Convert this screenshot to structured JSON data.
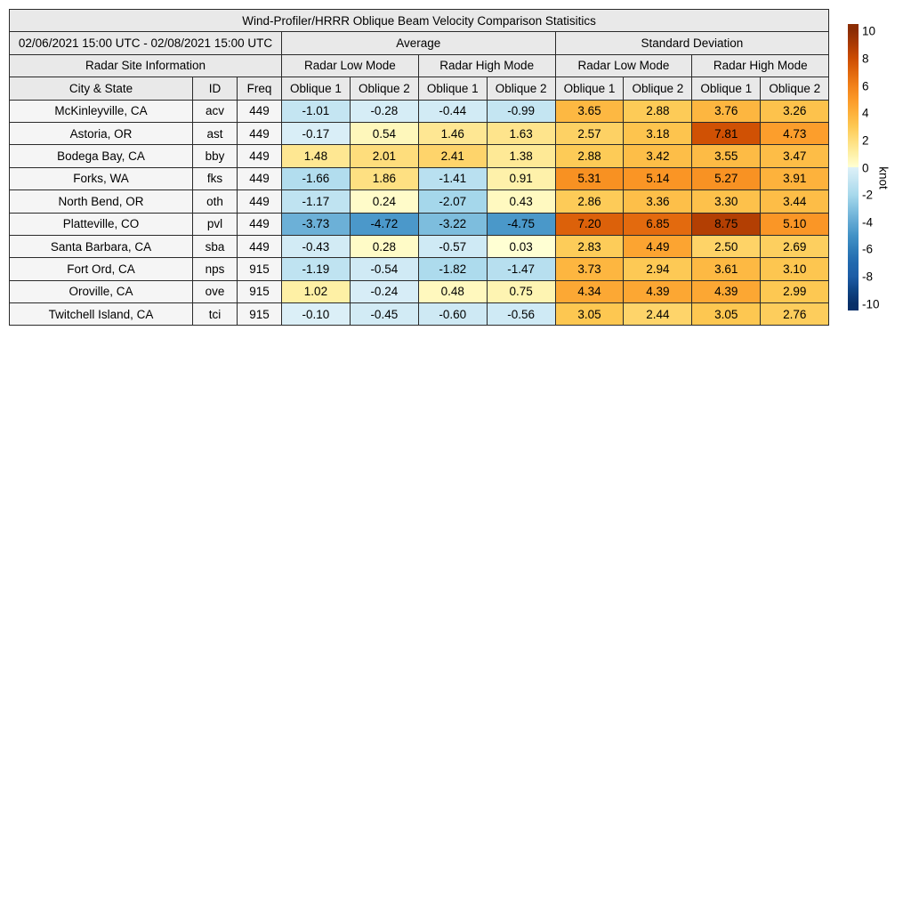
{
  "title": "Wind-Profiler/HRRR Oblique Beam Velocity Comparison Statisitics",
  "period": "02/06/2021 15:00 UTC - 02/08/2021 15:00 UTC",
  "header": {
    "group_average": "Average",
    "group_std": "Standard Deviation",
    "site_info": "Radar Site Information",
    "low_mode": "Radar Low Mode",
    "high_mode": "Radar High Mode",
    "col_city": "City & State",
    "col_id": "ID",
    "col_freq": "Freq",
    "oblique1": "Oblique 1",
    "oblique2": "Oblique 2"
  },
  "colorbar": {
    "label": "knot",
    "ticks": [
      10,
      8,
      6,
      4,
      2,
      0,
      -2,
      -4,
      -6,
      -8,
      -10
    ],
    "min": -10,
    "max": 10
  },
  "colors": {
    "header_bg": "#e9e9e9",
    "label_bg": "#f5f5f5",
    "border": "#2a2a2a",
    "colormap_positive": [
      "#ffffd4",
      "#fef0a6",
      "#fedd7c",
      "#fdc852",
      "#fdb03a",
      "#fb9827",
      "#f18018",
      "#e0660c",
      "#cc4c02",
      "#ab3a03",
      "#8c2d04"
    ],
    "colormap_negative": [
      "#ddf0f8",
      "#c4e5f2",
      "#a8d9ec",
      "#84c2e0",
      "#63a9d3",
      "#4292c6",
      "#2f7db9",
      "#2169ae",
      "#1d5da6",
      "#0f4585",
      "#082f68"
    ]
  },
  "chart_data": {
    "type": "heatmap",
    "title": "Wind-Profiler/HRRR Oblique Beam Velocity Comparison Statisitics",
    "unit": "knot",
    "value_range": [
      -10,
      10
    ],
    "value_columns": [
      "avg_low_oblique1",
      "avg_low_oblique2",
      "avg_high_oblique1",
      "avg_high_oblique2",
      "std_low_oblique1",
      "std_low_oblique2",
      "std_high_oblique1",
      "std_high_oblique2"
    ],
    "rows": [
      {
        "city": "McKinleyville, CA",
        "id": "acv",
        "freq": "449",
        "values": [
          -1.01,
          -0.28,
          -0.44,
          -0.99,
          3.65,
          2.88,
          3.76,
          3.26
        ]
      },
      {
        "city": "Astoria, OR",
        "id": "ast",
        "freq": "449",
        "values": [
          -0.17,
          0.54,
          1.46,
          1.63,
          2.57,
          3.18,
          7.81,
          4.73
        ]
      },
      {
        "city": "Bodega Bay, CA",
        "id": "bby",
        "freq": "449",
        "values": [
          1.48,
          2.01,
          2.41,
          1.38,
          2.88,
          3.42,
          3.55,
          3.47
        ]
      },
      {
        "city": "Forks, WA",
        "id": "fks",
        "freq": "449",
        "values": [
          -1.66,
          1.86,
          -1.41,
          0.91,
          5.31,
          5.14,
          5.27,
          3.91
        ]
      },
      {
        "city": "North Bend, OR",
        "id": "oth",
        "freq": "449",
        "values": [
          -1.17,
          0.24,
          -2.07,
          0.43,
          2.86,
          3.36,
          3.3,
          3.44
        ]
      },
      {
        "city": "Platteville, CO",
        "id": "pvl",
        "freq": "449",
        "values": [
          -3.73,
          -4.72,
          -3.22,
          -4.75,
          7.2,
          6.85,
          8.75,
          5.1
        ]
      },
      {
        "city": "Santa Barbara, CA",
        "id": "sba",
        "freq": "449",
        "values": [
          -0.43,
          0.28,
          -0.57,
          0.03,
          2.83,
          4.49,
          2.5,
          2.69
        ]
      },
      {
        "city": "Fort Ord, CA",
        "id": "nps",
        "freq": "915",
        "values": [
          -1.19,
          -0.54,
          -1.82,
          -1.47,
          3.73,
          2.94,
          3.61,
          3.1
        ]
      },
      {
        "city": "Oroville, CA",
        "id": "ove",
        "freq": "915",
        "values": [
          1.02,
          -0.24,
          0.48,
          0.75,
          4.34,
          4.39,
          4.39,
          2.99
        ]
      },
      {
        "city": "Twitchell Island, CA",
        "id": "tci",
        "freq": "915",
        "values": [
          -0.1,
          -0.45,
          -0.6,
          -0.56,
          3.05,
          2.44,
          3.05,
          2.76
        ]
      }
    ]
  }
}
